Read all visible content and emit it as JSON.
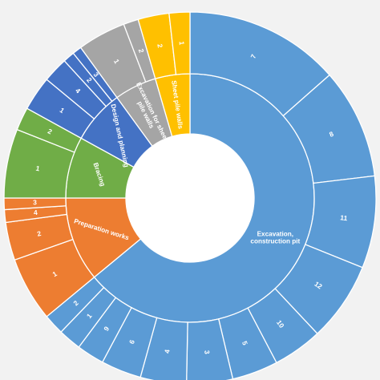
{
  "chart_data": {
    "type": "sunburst",
    "title": "",
    "colors": {
      "Excavation, construction pit": "#5B9BD5",
      "Preparation works": "#ED7D31",
      "Bracing": "#70AD47",
      "Design and planning": "#4472C4",
      "Excavation for sheet pile walls": "#A5A5A5",
      "Sheet pile walls": "#FFC000"
    },
    "categories": [
      {
        "name": "Excavation, construction pit",
        "value": 64.0,
        "children": [
          {
            "label": "7",
            "value": 13.5
          },
          {
            "label": "8",
            "value": 9.6
          },
          {
            "label": "11",
            "value": 8.0
          },
          {
            "label": "12",
            "value": 6.9
          },
          {
            "label": "10",
            "value": 4.3
          },
          {
            "label": "5",
            "value": 4.0
          },
          {
            "label": "3",
            "value": 4.0
          },
          {
            "label": "4",
            "value": 4.0
          },
          {
            "label": "6",
            "value": 3.5
          },
          {
            "label": "9",
            "value": 2.4
          },
          {
            "label": "1",
            "value": 2.0
          },
          {
            "label": "2",
            "value": 1.8
          }
        ]
      },
      {
        "name": "Preparation works",
        "value": 11.0,
        "children": [
          {
            "label": "1",
            "value": 5.6
          },
          {
            "label": "2",
            "value": 3.3
          },
          {
            "label": "4",
            "value": 1.1
          },
          {
            "label": "3",
            "value": 1.0
          }
        ]
      },
      {
        "name": "Bracing",
        "value": 8.0,
        "children": [
          {
            "label": "1",
            "value": 6.0
          },
          {
            "label": "2",
            "value": 2.0
          }
        ]
      },
      {
        "name": "Design and planning",
        "value": 7.0,
        "children": [
          {
            "label": "1",
            "value": 3.0
          },
          {
            "label": "4",
            "value": 2.2
          },
          {
            "label": "2",
            "value": 1.0
          },
          {
            "label": "3",
            "value": 0.8
          }
        ]
      },
      {
        "name": "Excavation for sheet pile walls",
        "value": 5.5,
        "children": [
          {
            "label": "1",
            "value": 4.2
          },
          {
            "label": "2",
            "value": 1.3
          }
        ]
      },
      {
        "name": "Sheet pile walls",
        "value": 4.5,
        "children": [
          {
            "label": "2",
            "value": 2.7
          },
          {
            "label": "1",
            "value": 1.8
          }
        ]
      }
    ]
  }
}
